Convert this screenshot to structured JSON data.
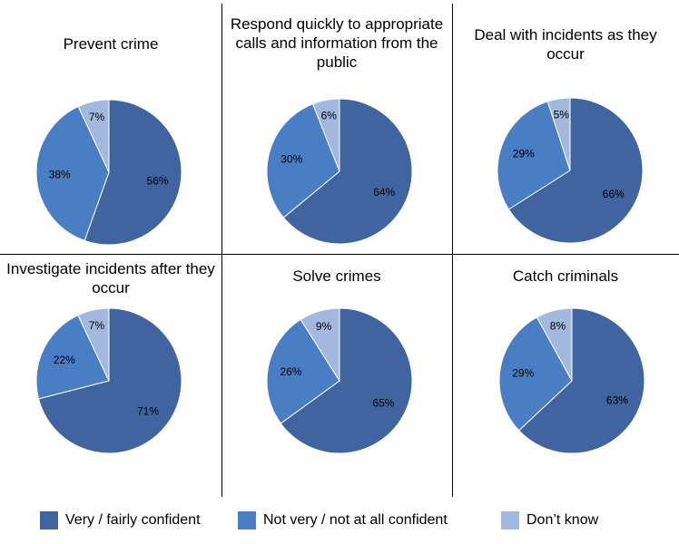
{
  "chart_data": {
    "type": "pie",
    "colors": {
      "Very / fairly confident": "#3F64A0",
      "Not very / not at all confident": "#4A7EC4",
      "Don’t know": "#A3B8DD"
    },
    "legend": [
      "Very / fairly confident",
      "Not very / not at all confident",
      "Don’t know"
    ],
    "legend_position": "bottom",
    "charts": [
      {
        "title": "Prevent crime",
        "labels": [
          "Very / fairly confident",
          "Not very / not at all confident",
          "Don’t know"
        ],
        "values": [
          56,
          38,
          7
        ],
        "value_labels": [
          "56%",
          "38%",
          "7%"
        ]
      },
      {
        "title": "Respond quickly to appropriate calls and information from the public",
        "labels": [
          "Very / fairly confident",
          "Not very / not at all confident",
          "Don’t know"
        ],
        "values": [
          64,
          30,
          6
        ],
        "value_labels": [
          "64%",
          "30%",
          "6%"
        ]
      },
      {
        "title": "Deal with incidents as they occur",
        "labels": [
          "Very / fairly confident",
          "Not very / not at all confident",
          "Don’t know"
        ],
        "values": [
          66,
          29,
          5
        ],
        "value_labels": [
          "66%",
          "29%",
          "5%"
        ]
      },
      {
        "title": "Investigate incidents after they occur",
        "labels": [
          "Very / fairly confident",
          "Not very / not at all confident",
          "Don’t know"
        ],
        "values": [
          71,
          22,
          7
        ],
        "value_labels": [
          "71%",
          "22%",
          "7%"
        ]
      },
      {
        "title": "Solve crimes",
        "labels": [
          "Very / fairly confident",
          "Not very / not at all confident",
          "Don’t know"
        ],
        "values": [
          65,
          26,
          9
        ],
        "value_labels": [
          "65%",
          "26%",
          "9%"
        ]
      },
      {
        "title": "Catch criminals",
        "labels": [
          "Very / fairly confident",
          "Not very / not at all confident",
          "Don’t know"
        ],
        "values": [
          63,
          29,
          8
        ],
        "value_labels": [
          "63%",
          "29%",
          "8%"
        ]
      }
    ]
  }
}
